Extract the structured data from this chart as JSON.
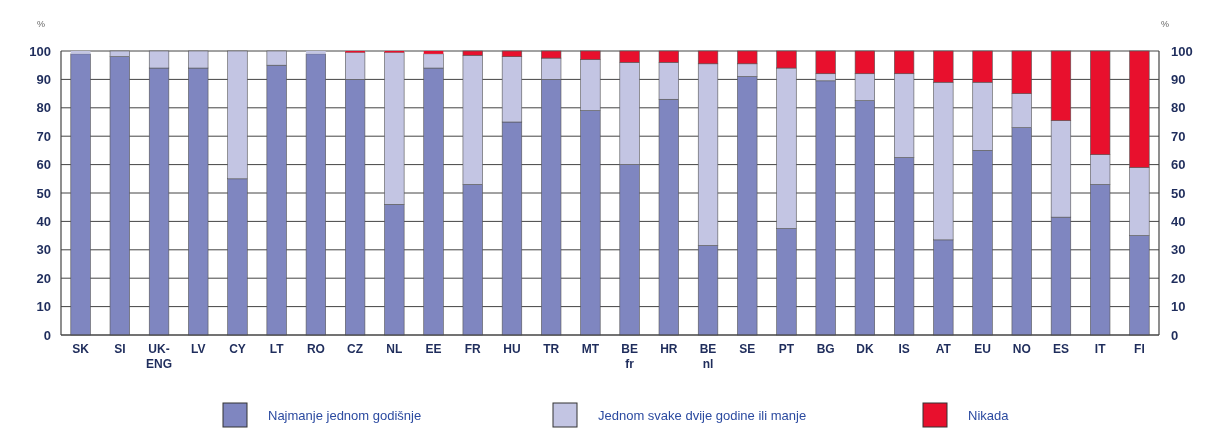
{
  "chart_data": {
    "type": "bar",
    "stacked": true,
    "ylabel": "%",
    "y2label": "%",
    "categories": [
      "SK",
      "SI",
      "UK-\nENG",
      "LV",
      "CY",
      "LT",
      "RO",
      "CZ",
      "NL",
      "EE",
      "FR",
      "HU",
      "TR",
      "MT",
      "BE\nfr",
      "HR",
      "BE\nnl",
      "SE",
      "PT",
      "BG",
      "DK",
      "IS",
      "AT",
      "EU",
      "NO",
      "ES",
      "IT",
      "FI"
    ],
    "series": [
      {
        "name": "Najmanje jednom godišnje",
        "color": "#7f86c0",
        "values": [
          99,
          98,
          94,
          94,
          55,
          95,
          99,
          90,
          46,
          94,
          53,
          75,
          90,
          79,
          60,
          83,
          31.5,
          91,
          37.5,
          89.5,
          82.5,
          62.5,
          33.5,
          65,
          73,
          41.5,
          53,
          35
        ]
      },
      {
        "name": "Jednom svake dvije godine ili manje",
        "color": "#c3c5e3",
        "values": [
          1,
          2,
          6,
          6,
          45,
          5,
          1,
          9.5,
          53.5,
          5,
          45.5,
          23,
          7.5,
          18,
          36,
          13,
          64,
          4.5,
          56.5,
          2.5,
          9.5,
          29.5,
          55.5,
          24,
          12,
          34,
          10.5,
          24
        ]
      },
      {
        "name": "Nikada",
        "color": "#e8102d",
        "values": [
          0,
          0,
          0,
          0,
          0,
          0,
          0,
          0.5,
          0.5,
          1,
          1.5,
          2,
          2.5,
          3,
          4,
          4,
          4.5,
          4.5,
          6,
          8,
          8,
          8,
          11,
          11,
          15,
          24.5,
          36.5,
          41
        ]
      }
    ],
    "ylim": [
      0,
      100
    ],
    "yticks": [
      0,
      10,
      20,
      30,
      40,
      50,
      60,
      70,
      80,
      90,
      100
    ],
    "y2lim": [
      0,
      100
    ],
    "y2ticks": [
      0,
      10,
      20,
      30,
      40,
      50,
      60,
      70,
      80,
      90,
      100
    ],
    "grid": "y",
    "legend": "bottom"
  }
}
